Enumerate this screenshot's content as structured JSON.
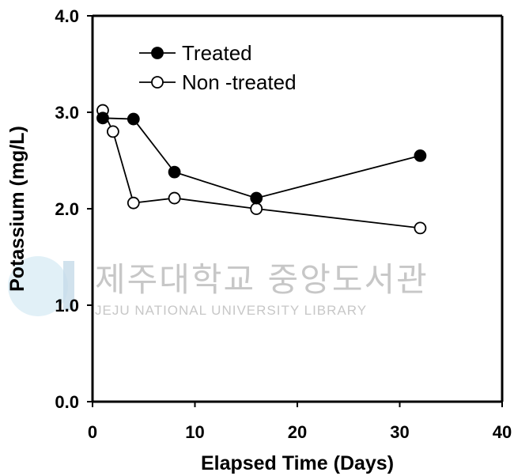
{
  "watermark": {
    "korean": "제주대학교 중앙도서관",
    "english": "JEJU NATIONAL UNIVERSITY  LIBRARY",
    "color": "#c7c7c7"
  },
  "chart_data": {
    "type": "line",
    "xlabel": "Elapsed Time (Days)",
    "ylabel": "Potassium (mg/L)",
    "xlim": [
      0,
      40
    ],
    "ylim": [
      0,
      4
    ],
    "xticks": [
      "0",
      "10",
      "20",
      "30",
      "40"
    ],
    "yticks": [
      "0.0",
      "1.0",
      "2.0",
      "3.0",
      "4.0"
    ],
    "grid": false,
    "legend_position": "top-left",
    "series": [
      {
        "name": "Treated",
        "marker": "filled-circle",
        "color": "#000000",
        "x": [
          1,
          4,
          8,
          16,
          32
        ],
        "y": [
          2.94,
          2.93,
          2.38,
          2.11,
          2.55
        ]
      },
      {
        "name": "Non -treated",
        "marker": "open-circle",
        "color": "#000000",
        "x": [
          1,
          2,
          4,
          8,
          16,
          32
        ],
        "y": [
          3.02,
          2.8,
          2.06,
          2.11,
          2.0,
          1.8
        ]
      }
    ]
  }
}
